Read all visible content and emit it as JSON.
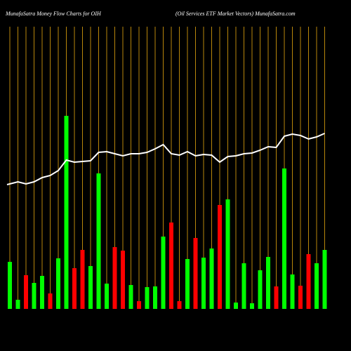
{
  "chart_data": {
    "type": "bar",
    "title": "MunafaSatra  Money Flow  Charts for OIH",
    "subtitle": "(Oil Services ETF Market Vectors) MunafaSatra.com",
    "bars": {
      "values": [
        67,
        13,
        48,
        37,
        47,
        22,
        72,
        275,
        58,
        84,
        61,
        193,
        36,
        88,
        83,
        34,
        11,
        31,
        32,
        103,
        123,
        11,
        71,
        101,
        73,
        86,
        148,
        156,
        9,
        65,
        8,
        55,
        74,
        32,
        200,
        49,
        33,
        78,
        65,
        84
      ],
      "colors": [
        "#00ff00",
        "#00ff00",
        "#ff0000",
        "#00ff00",
        "#00ff00",
        "#ff0000",
        "#00ff00",
        "#00ff00",
        "#ff0000",
        "#ff0000",
        "#00ff00",
        "#00ff00",
        "#00ff00",
        "#ff0000",
        "#ff0000",
        "#00ff00",
        "#ff0000",
        "#00ff00",
        "#00ff00",
        "#00ff00",
        "#ff0000",
        "#ff0000",
        "#00ff00",
        "#ff0000",
        "#00ff00",
        "#00ff00",
        "#ff0000",
        "#00ff00",
        "#00ff00",
        "#00ff00",
        "#00ff00",
        "#00ff00",
        "#00ff00",
        "#ff0000",
        "#00ff00",
        "#00ff00",
        "#ff0000",
        "#ff0000",
        "#00ff00",
        "#00ff00"
      ]
    },
    "line": {
      "color": "#ffffff",
      "values": [
        177,
        181,
        178,
        181,
        187,
        190,
        197,
        212,
        209,
        210,
        211,
        223,
        224,
        221,
        218,
        221,
        221,
        223,
        228,
        234,
        221,
        219,
        224,
        218,
        220,
        219,
        209,
        217,
        218,
        221,
        222,
        226,
        231,
        230,
        246,
        249,
        247,
        242,
        245,
        250
      ]
    },
    "ylim": [
      0,
      300
    ],
    "grid_color": "#b8860b"
  }
}
